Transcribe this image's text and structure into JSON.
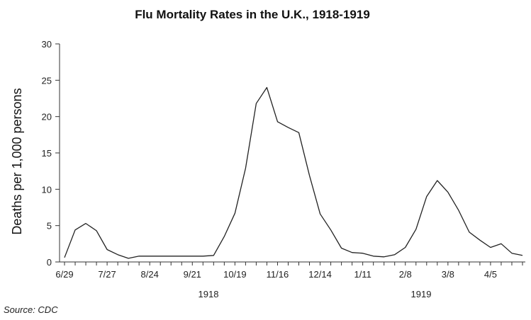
{
  "chart_data": {
    "type": "line",
    "title": "Flu Mortality Rates in the U.K., 1918-1919",
    "xlabel": "",
    "ylabel": "Deaths per 1,000 persons",
    "ylim": [
      0,
      30
    ],
    "yticks": [
      0,
      5,
      10,
      15,
      20,
      25,
      30
    ],
    "xtick_labels": [
      "6/29",
      "7/27",
      "8/24",
      "9/21",
      "10/19",
      "11/16",
      "12/14",
      "1/11",
      "2/8",
      "3/8",
      "4/5"
    ],
    "year_labels": [
      "1918",
      "1919"
    ],
    "grid": false,
    "series": [
      {
        "values": [
          0.6,
          4.4,
          5.3,
          4.3,
          1.7,
          1.0,
          0.5,
          0.8,
          0.8,
          0.8,
          0.8,
          0.8,
          0.8,
          0.8,
          0.9,
          3.5,
          6.7,
          12.9,
          21.8,
          24.0,
          19.3,
          18.5,
          17.8,
          11.9,
          6.6,
          4.4,
          1.9,
          1.3,
          1.2,
          0.8,
          0.7,
          1.0,
          2.0,
          4.5,
          9.0,
          11.2,
          9.6,
          7.1,
          4.1,
          3.0,
          2.0,
          2.5,
          1.2,
          0.9
        ]
      }
    ]
  },
  "source_note": "Source: CDC"
}
